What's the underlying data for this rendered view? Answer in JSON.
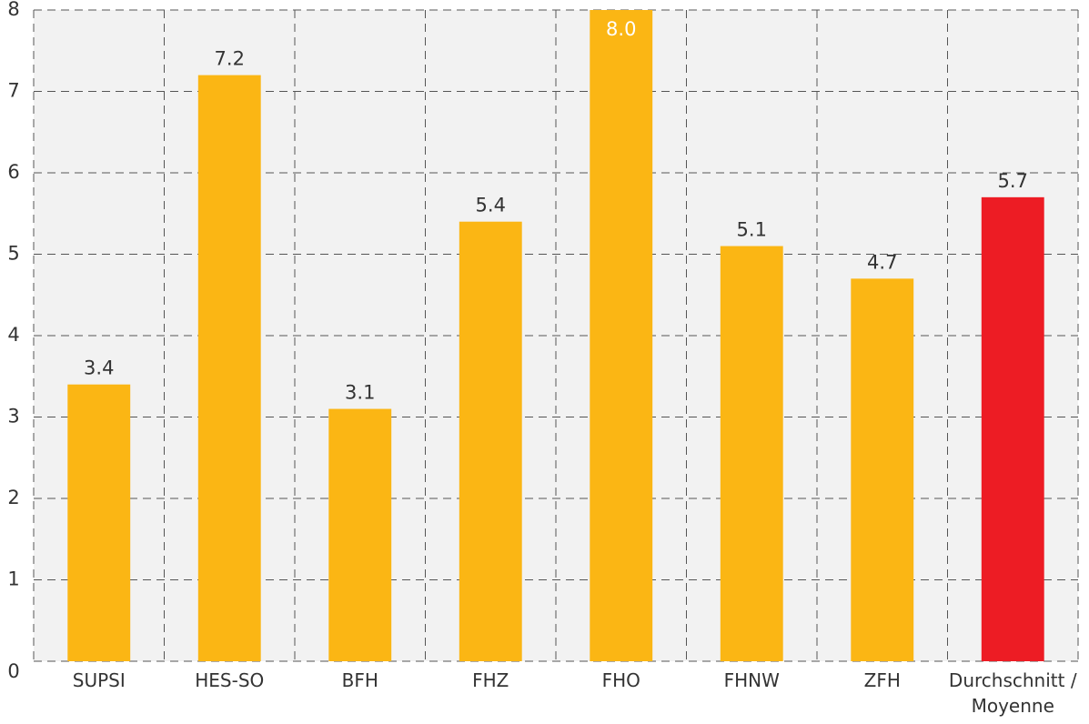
{
  "chart_data": {
    "type": "bar",
    "categories": [
      "SUPSI",
      "HES-SO",
      "BFH",
      "FHZ",
      "FHO",
      "FHNW",
      "ZFH",
      "Durchschnitt / Moyenne"
    ],
    "values": [
      3.4,
      7.2,
      3.1,
      5.4,
      8.0,
      5.1,
      4.7,
      5.7
    ],
    "value_labels": [
      "3.4",
      "7.2",
      "3.1",
      "5.4",
      "8.0",
      "5.1",
      "4.7",
      "5.7"
    ],
    "colors": [
      "#fbb614",
      "#fbb614",
      "#fbb614",
      "#fbb614",
      "#fbb614",
      "#fbb614",
      "#fbb614",
      "#ed1c24"
    ],
    "ylim": [
      0,
      8
    ],
    "yticks": [
      0,
      1,
      2,
      3,
      4,
      5,
      6,
      7,
      8
    ],
    "grid": true
  }
}
